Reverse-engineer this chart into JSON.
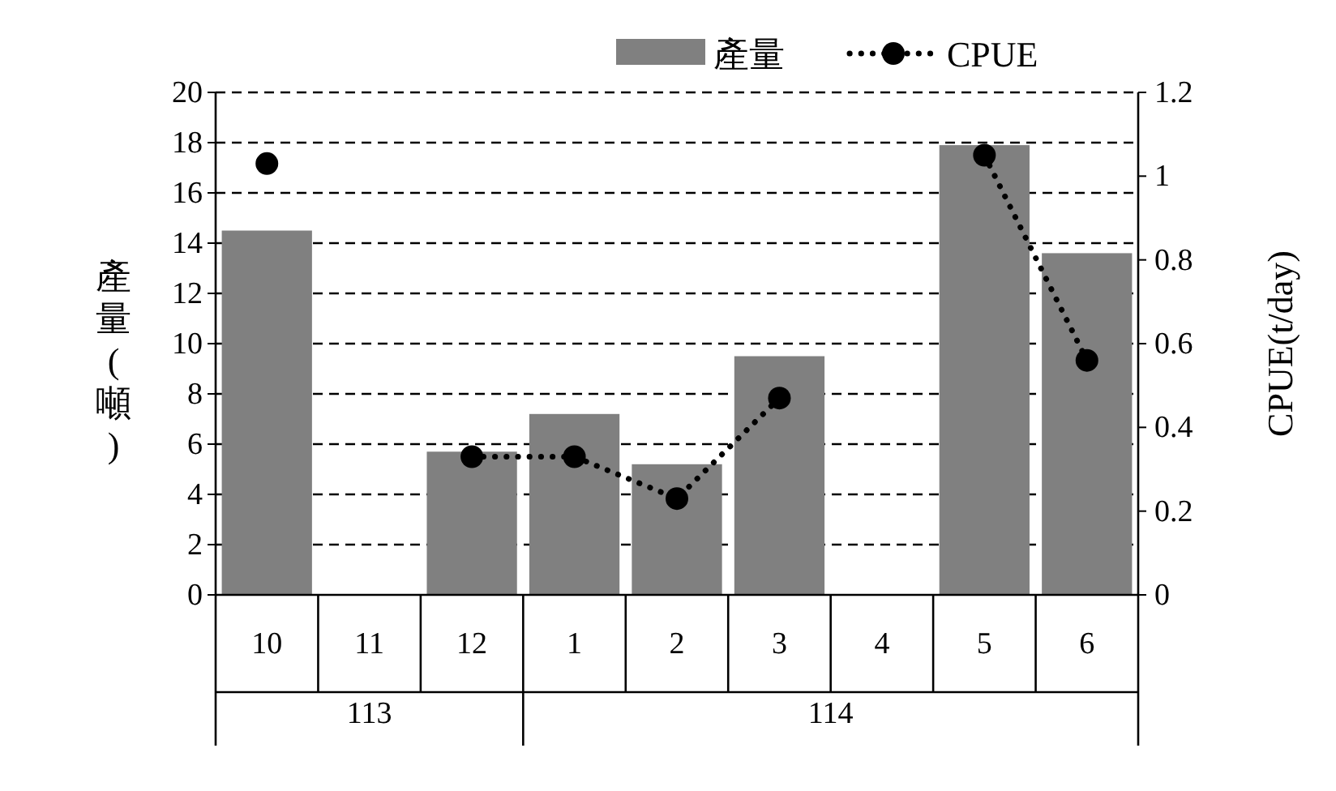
{
  "chart_data": {
    "type": "bar",
    "categories": [
      "10",
      "11",
      "12",
      "1",
      "2",
      "3",
      "4",
      "5",
      "6"
    ],
    "series": [
      {
        "name": "產量",
        "color": "#808080",
        "values": [
          14.5,
          null,
          5.7,
          7.2,
          5.2,
          9.5,
          null,
          17.9,
          13.6
        ]
      },
      {
        "name": "CPUE",
        "type": "line",
        "axis": "y2",
        "color": "#000000",
        "marker": "circle",
        "line_style": "dotted",
        "values": [
          1.03,
          null,
          0.33,
          0.33,
          0.23,
          0.47,
          null,
          1.05,
          0.56
        ]
      }
    ],
    "ylabel": "產量(噸)",
    "y2label": "CPUE(t/day)",
    "ylim": [
      0,
      20
    ],
    "yticks": [
      0,
      2,
      4,
      6,
      8,
      10,
      12,
      14,
      16,
      18,
      20
    ],
    "y2lim": [
      0,
      1.2
    ],
    "y2ticks": [
      0,
      0.2,
      0.4,
      0.6,
      0.8,
      1,
      1.2
    ],
    "annotations": [
      "113",
      "114"
    ],
    "grid": "y",
    "legend": "top right"
  }
}
